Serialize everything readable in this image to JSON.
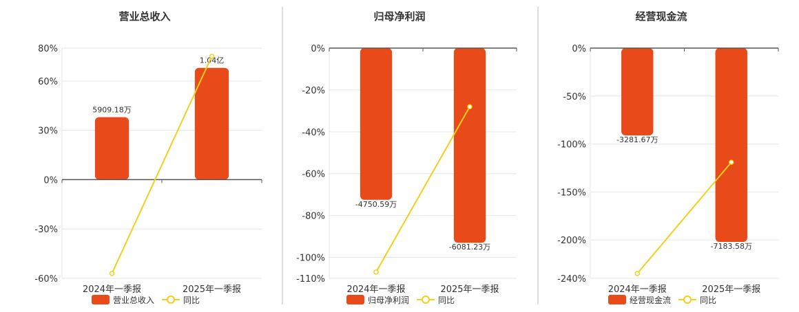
{
  "colors": {
    "bar": "#E84A1A",
    "line": "#F2CF1B",
    "grid": "#e6e6e6",
    "axis": "#555555",
    "divider": "#bbbbbb"
  },
  "chart_data": [
    {
      "type": "bar",
      "title": "营业总收入",
      "categories": [
        "2024年一季报",
        "2025年一季报"
      ],
      "ylim": [
        -60,
        80
      ],
      "yticks": [
        80,
        60,
        30,
        0,
        -30,
        -60
      ],
      "ytick_labels": [
        "80%",
        "60%",
        "30%",
        "0%",
        "-30%",
        "-60%"
      ],
      "series": [
        {
          "name": "营业总收入",
          "values": [
            38,
            68
          ],
          "labels": [
            "5909.18万",
            "1.04亿"
          ]
        },
        {
          "name": "同比",
          "values": [
            -57,
            75
          ]
        }
      ],
      "legend": [
        "营业总收入",
        "同比"
      ],
      "legend_position": "bottom"
    },
    {
      "type": "bar",
      "title": "归母净利润",
      "categories": [
        "2024年一季报",
        "2025年一季报"
      ],
      "ylim": [
        -110,
        0
      ],
      "yticks": [
        0,
        -20,
        -40,
        -60,
        -80,
        -100,
        -110
      ],
      "ytick_labels": [
        "0%",
        "-20%",
        "-40%",
        "-60%",
        "-80%",
        "-100%",
        "-110%"
      ],
      "series": [
        {
          "name": "归母净利润",
          "values": [
            -72.5,
            -93
          ],
          "labels": [
            "-4750.59万",
            "-6081.23万"
          ]
        },
        {
          "name": "同比",
          "values": [
            -107,
            -28
          ]
        }
      ],
      "legend": [
        "归母净利润",
        "同比"
      ],
      "legend_position": "bottom"
    },
    {
      "type": "bar",
      "title": "经营现金流",
      "categories": [
        "2024年一季报",
        "2025年一季报"
      ],
      "ylim": [
        -240,
        0
      ],
      "yticks": [
        0,
        -50,
        -100,
        -150,
        -200,
        -240
      ],
      "ytick_labels": [
        "0%",
        "-50%",
        "-100%",
        "-150%",
        "-200%",
        "-240%"
      ],
      "series": [
        {
          "name": "经营现金流",
          "values": [
            -91,
            -202
          ],
          "labels": [
            "-3281.67万",
            "-7183.58万"
          ]
        },
        {
          "name": "同比",
          "values": [
            -235,
            -119
          ]
        }
      ],
      "legend": [
        "经营现金流",
        "同比"
      ],
      "legend_position": "bottom"
    }
  ]
}
